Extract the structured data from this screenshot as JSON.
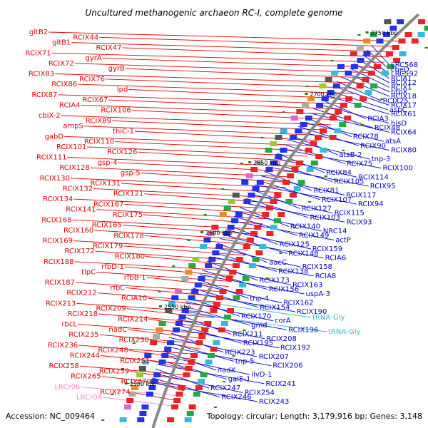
{
  "title": "Uncultured methanogenic archaeon RC-I, complete genome",
  "footer": {
    "accession": "Accession: NC_009464",
    "summary": "Topology: circular; Length: 3,179,916 bp; Genes: 3,148"
  },
  "colors": {
    "left_labels": "#e00000",
    "right_labels": "#0000cc",
    "trna_labels": "#33bbdd",
    "rrna_labels": "#ff88cc",
    "backbone": "#888888",
    "tick": "#118811"
  },
  "kbp_marks": [
    "2750 kbp",
    "2700 kbp",
    "2650 kbp",
    "2600 kbp",
    "2550 kbp",
    "2500 kbp"
  ],
  "left_labels": [
    "gltB2",
    "RCIX44",
    "gltB1",
    "RCIX47",
    "RCIX71",
    "gyrA",
    "RCIX72",
    "gyrB",
    "RCIX83",
    "RCIX76",
    "RCIX86",
    "lpd",
    "RCIX87",
    "RCIX67",
    "RCIA4",
    "RCIX106",
    "cbiX-2",
    "RCIX89",
    "ampS",
    "thiC-1",
    "gabD",
    "RCIX110",
    "RCIX101",
    "RCIX126",
    "RCIX111",
    "gsp-4",
    "RCIX128",
    "gsp-5",
    "RCIX130",
    "RCIX131",
    "RCIX132",
    "RCIX121",
    "RCIX134",
    "RCIX167",
    "RCIX141",
    "RCIX175",
    "RCIX168",
    "RCIX165",
    "RCIX160",
    "RCIX178",
    "RCIX169",
    "RCIX179",
    "RCIX172",
    "RCIX180",
    "RCIX188",
    "rfbD-1",
    "tlpC",
    "rfbB-1",
    "RCIX187",
    "rfbC",
    "RCIX212",
    "RCIA10",
    "RCIX213",
    "RCIX209",
    "RCIX218",
    "RCIX214",
    "rbcL",
    "nadC",
    "RCIX235",
    "RCIX230",
    "RCIX236",
    "RCIX248",
    "RCIX244",
    "RCIX251",
    "RCIX258",
    "RCIX259",
    "RCIX265",
    "RCIX270",
    "LRCr06",
    "RCIX274",
    "LRCr04"
  ],
  "right_labels": [
    "LRC568",
    "cheD",
    "LRC592",
    "RCIA1",
    "RCIX12",
    "RCIX1",
    "htpX",
    "RCIX18",
    "RCIX25",
    "RCIX17",
    "aspC",
    "RCIX61",
    "RCIA3",
    "hisD",
    "RCIX48",
    "RCIX64",
    "RCIX78",
    "atsA",
    "RCIX90",
    "RCIX80",
    "atsB-2",
    "tnp-3",
    "RCIX75",
    "RCIX100",
    "RCIX84",
    "RCIX114",
    "RCIX105",
    "RCIX95",
    "RCIX81",
    "RCIX117",
    "RCIX107",
    "RCIX94",
    "RCIX127",
    "RCIX115",
    "RCIX103",
    "RCIX93",
    "RCIX140",
    "NRC14",
    "RCIX149",
    "actP",
    "RCIX125",
    "RCIX159",
    "RCIX148",
    "RCIA6",
    "aacC",
    "RCIX158",
    "RCIX138",
    "RCIA8",
    "RCIX173",
    "RCIX163",
    "RCIX156",
    "uspA-3",
    "tnp-4",
    "RCIX162",
    "RCIX154",
    "RCIX190",
    "RCIX170",
    "corA",
    "gmd",
    "RCIX196",
    "RCIX211",
    "RCIX208",
    "RCIX195",
    "RCIX192",
    "RCIX223",
    "RCIX207",
    "tnp-5",
    "RCIX206",
    "nadX",
    "ilvD-1",
    "galE-1",
    "RCIX241",
    "RCIX247",
    "RCIX254",
    "RCIX246",
    "RCIX243"
  ],
  "trna_labels": [
    "tRNA-Gly",
    "tRNA-Gly"
  ]
}
